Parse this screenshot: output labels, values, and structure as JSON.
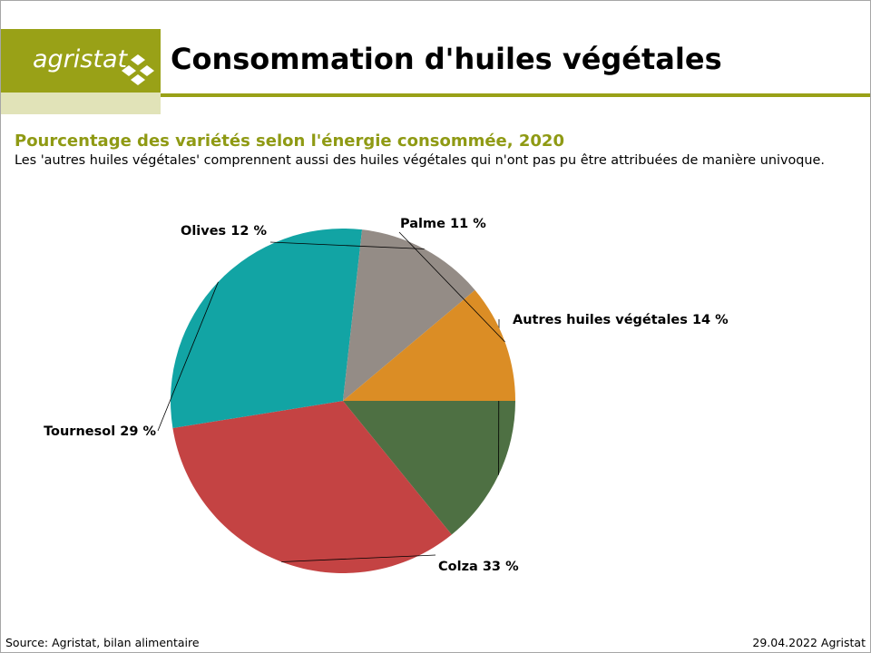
{
  "header": {
    "logo_text": "agristat",
    "title": "Consommation d'huiles végétales"
  },
  "chart_data": {
    "type": "pie",
    "title": "Pourcentage des variétés selon l'énergie consommée, 2020",
    "subtitle": "Les 'autres huiles végétales' comprennent aussi des huiles végétales qui n'ont pas pu être attribuées de manière univoque.",
    "slices": [
      {
        "name": "Autres huiles végétales",
        "value": 14,
        "label": "Autres huiles végétales 14 %",
        "color": "#4e7043"
      },
      {
        "name": "Colza",
        "value": 33,
        "label": "Colza 33 %",
        "color": "#c44343"
      },
      {
        "name": "Tournesol",
        "value": 29,
        "label": "Tournesol 29 %",
        "color": "#12a4a4"
      },
      {
        "name": "Olives",
        "value": 12,
        "label": "Olives 12 %",
        "color": "#948c86"
      },
      {
        "name": "Palme",
        "value": 11,
        "label": "Palme 11 %",
        "color": "#db8d25"
      }
    ]
  },
  "footer": {
    "source": "Source: Agristat, bilan alimentaire",
    "date": "29.04.2022 Agristat"
  }
}
